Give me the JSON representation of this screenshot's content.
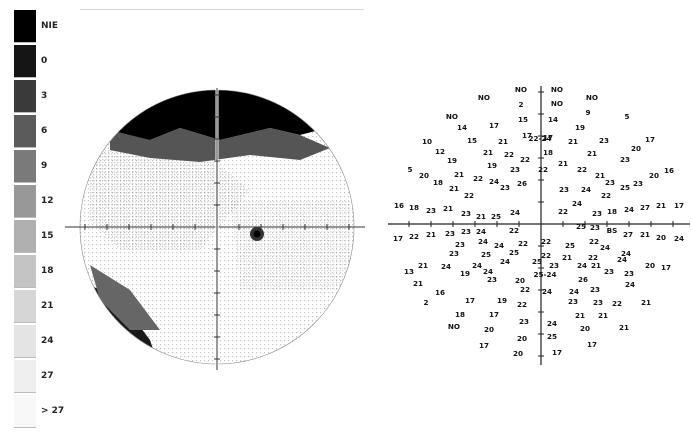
{
  "legend": {
    "items": [
      {
        "label": "NIE",
        "fill": "#000000"
      },
      {
        "label": "0",
        "fill": "#151515"
      },
      {
        "label": "3",
        "fill": "#3a3a3a"
      },
      {
        "label": "6",
        "fill": "#5b5b5b"
      },
      {
        "label": "9",
        "fill": "#7a7a7a"
      },
      {
        "label": "12",
        "fill": "#989898"
      },
      {
        "label": "15",
        "fill": "#b0b0b0"
      },
      {
        "label": "18",
        "fill": "#c4c4c4"
      },
      {
        "label": "21",
        "fill": "#d6d6d6"
      },
      {
        "label": "24",
        "fill": "#e4e4e4"
      },
      {
        "label": "27",
        "fill": "#efefef"
      },
      {
        "label": "> 27",
        "fill": "#f8f8f8"
      }
    ]
  },
  "numeric_map": {
    "points": [
      [
        "NO",
        521,
        92
      ],
      [
        "NO",
        557,
        92
      ],
      [
        "NO",
        484,
        100
      ],
      [
        "2",
        521,
        107
      ],
      [
        "NO",
        557,
        106
      ],
      [
        "NO",
        592,
        100
      ],
      [
        "NO",
        452,
        119
      ],
      [
        "17",
        494,
        128
      ],
      [
        "15",
        523,
        122
      ],
      [
        "14",
        553,
        122
      ],
      [
        "9",
        588,
        115
      ],
      [
        "5",
        627,
        119
      ],
      [
        "14",
        462,
        130
      ],
      [
        "17",
        527,
        138
      ],
      [
        "17",
        548,
        140
      ],
      [
        "19",
        580,
        130
      ],
      [
        "10",
        427,
        144
      ],
      [
        "15",
        472,
        143
      ],
      [
        "21",
        503,
        144
      ],
      [
        "21",
        573,
        144
      ],
      [
        "23",
        604,
        143
      ],
      [
        "17",
        650,
        142
      ],
      [
        "12",
        440,
        154
      ],
      [
        "21",
        488,
        155
      ],
      [
        "22",
        509,
        157
      ],
      [
        "18",
        548,
        155
      ],
      [
        "21",
        592,
        156
      ],
      [
        "20",
        636,
        151
      ],
      [
        "19",
        452,
        163
      ],
      [
        "19",
        492,
        168
      ],
      [
        "22",
        525,
        162
      ],
      [
        "22-24",
        540,
        141
      ],
      [
        "21",
        563,
        166
      ],
      [
        "23",
        625,
        162
      ],
      [
        "5",
        410,
        172
      ],
      [
        "20",
        424,
        178
      ],
      [
        "21",
        459,
        177
      ],
      [
        "22",
        478,
        181
      ],
      [
        "24",
        494,
        184
      ],
      [
        "23",
        515,
        172
      ],
      [
        "22",
        543,
        172
      ],
      [
        "22",
        582,
        172
      ],
      [
        "21",
        600,
        178
      ],
      [
        "23",
        610,
        185
      ],
      [
        "20",
        654,
        178
      ],
      [
        "16",
        669,
        173
      ],
      [
        "18",
        438,
        185
      ],
      [
        "21",
        454,
        191
      ],
      [
        "22",
        469,
        198
      ],
      [
        "23",
        505,
        190
      ],
      [
        "26",
        522,
        186
      ],
      [
        "23",
        564,
        192
      ],
      [
        "24",
        586,
        192
      ],
      [
        "22",
        606,
        198
      ],
      [
        "25",
        625,
        190
      ],
      [
        "23",
        638,
        186
      ],
      [
        "16",
        399,
        208
      ],
      [
        "18",
        414,
        210
      ],
      [
        "23",
        431,
        213
      ],
      [
        "21",
        448,
        211
      ],
      [
        "23",
        466,
        216
      ],
      [
        "21",
        481,
        219
      ],
      [
        "25",
        496,
        219
      ],
      [
        "24",
        515,
        215
      ],
      [
        "22",
        563,
        214
      ],
      [
        "24",
        577,
        206
      ],
      [
        "23",
        597,
        216
      ],
      [
        "18",
        612,
        214
      ],
      [
        "24",
        629,
        212
      ],
      [
        "27",
        645,
        210
      ],
      [
        "21",
        661,
        208
      ],
      [
        "17",
        679,
        208
      ],
      [
        "17",
        398,
        241
      ],
      [
        "22",
        414,
        239
      ],
      [
        "21",
        431,
        237
      ],
      [
        "23",
        450,
        236
      ],
      [
        "23",
        466,
        234
      ],
      [
        "24",
        481,
        234
      ],
      [
        "22",
        514,
        233
      ],
      [
        "22",
        546,
        244
      ],
      [
        "25",
        581,
        229
      ],
      [
        "23",
        595,
        230
      ],
      [
        "BS",
        612,
        233
      ],
      [
        "27",
        628,
        237
      ],
      [
        "21",
        645,
        237
      ],
      [
        "20",
        661,
        240
      ],
      [
        "24",
        679,
        241
      ],
      [
        "23",
        460,
        247
      ],
      [
        "24",
        483,
        244
      ],
      [
        "24",
        499,
        248
      ],
      [
        "22",
        523,
        246
      ],
      [
        "25",
        570,
        248
      ],
      [
        "22",
        594,
        244
      ],
      [
        "24",
        605,
        250
      ],
      [
        "23",
        454,
        256
      ],
      [
        "25",
        486,
        257
      ],
      [
        "25",
        514,
        255
      ],
      [
        "22",
        546,
        258
      ],
      [
        "21",
        567,
        260
      ],
      [
        "22",
        593,
        260
      ],
      [
        "24",
        626,
        256
      ],
      [
        "13",
        409,
        274
      ],
      [
        "21",
        423,
        268
      ],
      [
        "24",
        446,
        269
      ],
      [
        "24",
        477,
        268
      ],
      [
        "24",
        505,
        264
      ],
      [
        "25",
        537,
        264
      ],
      [
        "23",
        554,
        268
      ],
      [
        "24",
        582,
        268
      ],
      [
        "21",
        596,
        268
      ],
      [
        "24",
        622,
        262
      ],
      [
        "20",
        650,
        268
      ],
      [
        "17",
        666,
        270
      ],
      [
        "19",
        465,
        276
      ],
      [
        "24",
        488,
        274
      ],
      [
        "25-24",
        545,
        277
      ],
      [
        "26",
        583,
        282
      ],
      [
        "23",
        609,
        274
      ],
      [
        "23",
        629,
        276
      ],
      [
        "21",
        418,
        286
      ],
      [
        "23",
        492,
        282
      ],
      [
        "20",
        520,
        283
      ],
      [
        "22",
        525,
        292
      ],
      [
        "24",
        547,
        294
      ],
      [
        "24",
        574,
        294
      ],
      [
        "23",
        595,
        292
      ],
      [
        "24",
        630,
        287
      ],
      [
        "2",
        426,
        305
      ],
      [
        "16",
        440,
        295
      ],
      [
        "17",
        470,
        303
      ],
      [
        "19",
        502,
        303
      ],
      [
        "22",
        522,
        307
      ],
      [
        "23",
        573,
        304
      ],
      [
        "23",
        598,
        305
      ],
      [
        "22",
        617,
        306
      ],
      [
        "21",
        646,
        305
      ],
      [
        "18",
        460,
        317
      ],
      [
        "17",
        494,
        317
      ],
      [
        "23",
        524,
        324
      ],
      [
        "24",
        552,
        326
      ],
      [
        "21",
        580,
        318
      ],
      [
        "21",
        603,
        318
      ],
      [
        "NO",
        454,
        329
      ],
      [
        "20",
        489,
        332
      ],
      [
        "20",
        522,
        341
      ],
      [
        "25",
        552,
        339
      ],
      [
        "20",
        585,
        331
      ],
      [
        "21",
        624,
        330
      ],
      [
        "17",
        484,
        348
      ],
      [
        "20",
        518,
        356
      ],
      [
        "17",
        557,
        355
      ],
      [
        "17",
        592,
        347
      ]
    ]
  }
}
